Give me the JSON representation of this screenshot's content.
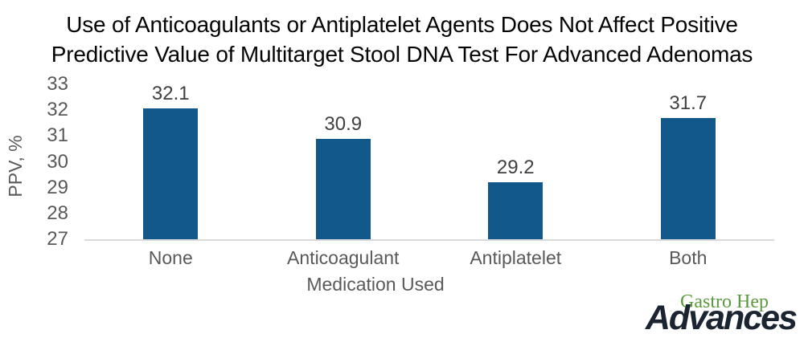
{
  "title": {
    "line1": "Use of Anticoagulants or Antiplatelet Agents Does Not Affect Positive",
    "line2": "Predictive Value of Multitarget Stool DNA Test For Advanced Adenomas"
  },
  "chart_data": {
    "type": "bar",
    "title": "Use of Anticoagulants or Antiplatelet Agents Does Not Affect Positive Predictive Value of Multitarget Stool DNA Test For Advanced Adenomas",
    "categories": [
      "None",
      "Anticoagulant",
      "Antiplatelet",
      "Both"
    ],
    "values": [
      32.1,
      30.9,
      29.2,
      31.7
    ],
    "data_labels": [
      "32.1",
      "30.9",
      "29.2",
      "31.7"
    ],
    "xlabel": "Medication Used",
    "ylabel": "PPV, %",
    "ylim": [
      27,
      33
    ],
    "yticks": [
      33,
      32,
      31,
      30,
      29,
      28,
      27
    ],
    "grid": false,
    "legend": "none",
    "bar_color": "#12588A"
  },
  "colors": {
    "bar": "#12588A",
    "axis_text": "#595959",
    "data_label": "#404040",
    "axis_line": "#D9D9D9",
    "title_text": "#050505",
    "logo_green": "#5C9A3F",
    "logo_navy": "#1B2431"
  },
  "logo": {
    "top_text": "Gastro Hep",
    "bottom_text": "Advances"
  }
}
